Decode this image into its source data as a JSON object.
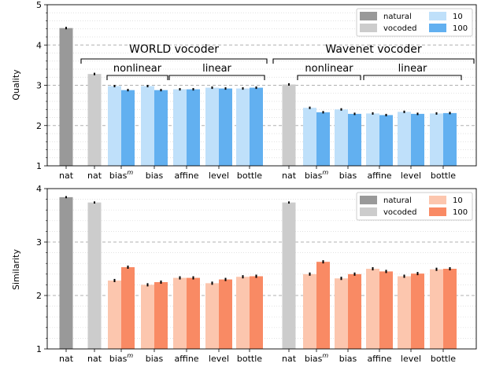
{
  "chart_data": [
    {
      "type": "bar",
      "ylabel": "Quality",
      "ylim": [
        1,
        5
      ],
      "yticks": [
        "1",
        "2",
        "3",
        "4",
        "5"
      ],
      "grid": "dashed horizontal",
      "groups": [
        {
          "label": "WORLD vocoder",
          "sublabels": [
            "nonlinear",
            "linear"
          ]
        },
        {
          "label": "Wavenet vocoder",
          "sublabels": [
            "nonlinear",
            "linear"
          ]
        }
      ],
      "categories": [
        "nat",
        "nat",
        "bias^m",
        "bias",
        "affine",
        "level",
        "bottle",
        "nat",
        "bias^m",
        "bias",
        "affine",
        "level",
        "bottle"
      ],
      "legend": {
        "placement": "top-right",
        "entries": [
          {
            "name": "natural",
            "color": "#999999"
          },
          {
            "name": "vocoded",
            "color": "#cccccc"
          },
          {
            "name": "10",
            "color": "#bfe0fa"
          },
          {
            "name": "100",
            "color": "#62b0f0"
          }
        ]
      },
      "series": [
        {
          "name": "natural",
          "color": "#999999",
          "points": [
            {
              "x": 0,
              "value": 4.42,
              "err": 0.03
            }
          ]
        },
        {
          "name": "vocoded",
          "color": "#cccccc",
          "points": [
            {
              "x": 1,
              "value": 3.28,
              "err": 0.03
            },
            {
              "x": 7,
              "value": 3.02,
              "err": 0.03
            }
          ]
        },
        {
          "name": "10",
          "color": "#bfe0fa",
          "points": [
            {
              "x": 2,
              "value": 2.98,
              "err": 0.03
            },
            {
              "x": 3,
              "value": 2.98,
              "err": 0.03
            },
            {
              "x": 4,
              "value": 2.9,
              "err": 0.03
            },
            {
              "x": 5,
              "value": 2.94,
              "err": 0.03
            },
            {
              "x": 6,
              "value": 2.92,
              "err": 0.03
            },
            {
              "x": 8,
              "value": 2.44,
              "err": 0.03
            },
            {
              "x": 9,
              "value": 2.4,
              "err": 0.03
            },
            {
              "x": 10,
              "value": 2.3,
              "err": 0.03
            },
            {
              "x": 11,
              "value": 2.34,
              "err": 0.03
            },
            {
              "x": 12,
              "value": 2.3,
              "err": 0.03
            }
          ]
        },
        {
          "name": "100",
          "color": "#62b0f0",
          "points": [
            {
              "x": 2,
              "value": 2.88,
              "err": 0.03
            },
            {
              "x": 3,
              "value": 2.88,
              "err": 0.03
            },
            {
              "x": 4,
              "value": 2.9,
              "err": 0.03
            },
            {
              "x": 5,
              "value": 2.92,
              "err": 0.03
            },
            {
              "x": 6,
              "value": 2.94,
              "err": 0.03
            },
            {
              "x": 8,
              "value": 2.33,
              "err": 0.03
            },
            {
              "x": 9,
              "value": 2.29,
              "err": 0.03
            },
            {
              "x": 10,
              "value": 2.26,
              "err": 0.03
            },
            {
              "x": 11,
              "value": 2.29,
              "err": 0.03
            },
            {
              "x": 12,
              "value": 2.31,
              "err": 0.03
            }
          ]
        }
      ]
    },
    {
      "type": "bar",
      "ylabel": "Similarity",
      "ylim": [
        1,
        4
      ],
      "yticks": [
        "1",
        "2",
        "3",
        "4"
      ],
      "grid": "dashed horizontal",
      "categories": [
        "nat",
        "nat",
        "bias^m",
        "bias",
        "affine",
        "level",
        "bottle",
        "nat",
        "bias^m",
        "bias",
        "affine",
        "level",
        "bottle"
      ],
      "legend": {
        "placement": "top-right",
        "entries": [
          {
            "name": "natural",
            "color": "#999999"
          },
          {
            "name": "vocoded",
            "color": "#cccccc"
          },
          {
            "name": "10",
            "color": "#fcc6ae"
          },
          {
            "name": "100",
            "color": "#f98a64"
          }
        ]
      },
      "series": [
        {
          "name": "natural",
          "color": "#999999",
          "points": [
            {
              "x": 0,
              "value": 3.84,
              "err": 0.02
            }
          ]
        },
        {
          "name": "vocoded",
          "color": "#cccccc",
          "points": [
            {
              "x": 1,
              "value": 3.74,
              "err": 0.02
            },
            {
              "x": 7,
              "value": 3.74,
              "err": 0.02
            }
          ]
        },
        {
          "name": "10",
          "color": "#fcc6ae",
          "points": [
            {
              "x": 2,
              "value": 2.28,
              "err": 0.03
            },
            {
              "x": 3,
              "value": 2.2,
              "err": 0.03
            },
            {
              "x": 4,
              "value": 2.33,
              "err": 0.03
            },
            {
              "x": 5,
              "value": 2.23,
              "err": 0.03
            },
            {
              "x": 6,
              "value": 2.35,
              "err": 0.03
            },
            {
              "x": 8,
              "value": 2.4,
              "err": 0.03
            },
            {
              "x": 9,
              "value": 2.32,
              "err": 0.03
            },
            {
              "x": 10,
              "value": 2.5,
              "err": 0.03
            },
            {
              "x": 11,
              "value": 2.36,
              "err": 0.03
            },
            {
              "x": 12,
              "value": 2.49,
              "err": 0.03
            }
          ]
        },
        {
          "name": "100",
          "color": "#f98a64",
          "points": [
            {
              "x": 2,
              "value": 2.53,
              "err": 0.03
            },
            {
              "x": 3,
              "value": 2.25,
              "err": 0.03
            },
            {
              "x": 4,
              "value": 2.33,
              "err": 0.03
            },
            {
              "x": 5,
              "value": 2.3,
              "err": 0.03
            },
            {
              "x": 6,
              "value": 2.36,
              "err": 0.03
            },
            {
              "x": 8,
              "value": 2.63,
              "err": 0.03
            },
            {
              "x": 9,
              "value": 2.4,
              "err": 0.03
            },
            {
              "x": 10,
              "value": 2.45,
              "err": 0.03
            },
            {
              "x": 11,
              "value": 2.41,
              "err": 0.03
            },
            {
              "x": 12,
              "value": 2.5,
              "err": 0.03
            }
          ]
        }
      ]
    }
  ]
}
